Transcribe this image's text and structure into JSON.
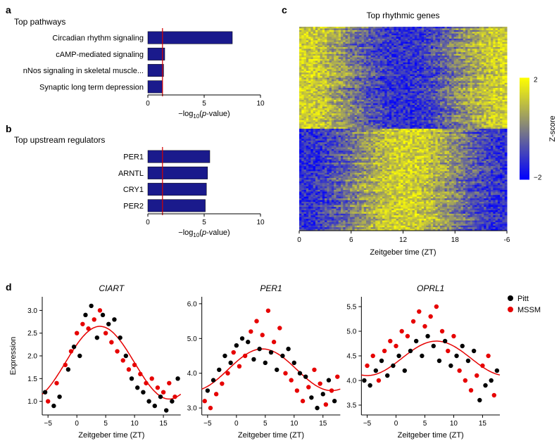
{
  "panelA": {
    "label": "a",
    "title": "Top pathways",
    "categories": [
      "Circadian rhythm signaling",
      "cAMP-mediated signaling",
      "nNos signaling in skeletal muscle...",
      "Synaptic long term depression"
    ],
    "values": [
      7.5,
      1.5,
      1.4,
      1.3
    ],
    "threshold": 1.3,
    "xlim": [
      0,
      10
    ],
    "xticks": [
      0,
      5,
      10
    ],
    "xlabel": "−log₁₀(p-value)",
    "bar_color": "#1a1a8c",
    "threshold_color": "#d40000",
    "cat_fontsize": 11,
    "tick_fontsize": 10,
    "label_fontsize": 11
  },
  "panelB": {
    "label": "b",
    "title": "Top upstream regulators",
    "categories": [
      "PER1",
      "ARNTL",
      "CRY1",
      "PER2"
    ],
    "values": [
      5.5,
      5.3,
      5.2,
      5.1
    ],
    "threshold": 1.3,
    "xlim": [
      0,
      10
    ],
    "xticks": [
      0,
      5,
      10
    ],
    "xlabel": "−log₁₀(p-value)",
    "bar_color": "#1a1a8c",
    "threshold_color": "#d40000",
    "cat_fontsize": 11,
    "tick_fontsize": 10,
    "label_fontsize": 11
  },
  "panelC": {
    "label": "c",
    "title": "Top rhythmic genes",
    "xlabel": "Zeitgeber time (ZT)",
    "xticks": [
      0,
      6,
      12,
      18,
      -6
    ],
    "colorbar_label": "Z-score",
    "colorbar_ticks": [
      -2,
      2
    ],
    "cmap_low": "#0000ff",
    "cmap_high": "#ffff00",
    "background": "#ffffff",
    "title_fontsize": 12,
    "label_fontsize": 11,
    "tick_fontsize": 10,
    "heatmap_rows": 120,
    "heatmap_cols": 90
  },
  "panelD": {
    "label": "d",
    "xlabel": "Zeitgeber time (ZT)",
    "ylabel": "Expression",
    "xlim": [
      -6,
      18
    ],
    "xticks": [
      -5,
      0,
      5,
      10,
      15
    ],
    "legend": [
      {
        "label": "Pitt",
        "color": "#000000"
      },
      {
        "label": "MSSM",
        "color": "#e60000"
      }
    ],
    "point_radius": 3.2,
    "line_color": "#e60000",
    "line_width": 1.5,
    "label_fontsize": 11,
    "tick_fontsize": 10,
    "title_fontsize": 12,
    "genes": [
      {
        "name": "CIART",
        "ylim": [
          0.7,
          3.3
        ],
        "yticks": [
          1.0,
          1.5,
          2.0,
          2.5,
          3.0
        ],
        "fit": {
          "mesor": 1.85,
          "amp": 0.8,
          "phase": 4.0
        },
        "points": [
          {
            "x": -5.5,
            "y": 1.2,
            "g": 0
          },
          {
            "x": -5.0,
            "y": 1.0,
            "g": 1
          },
          {
            "x": -4.0,
            "y": 0.9,
            "g": 0
          },
          {
            "x": -3.5,
            "y": 1.4,
            "g": 1
          },
          {
            "x": -3.0,
            "y": 1.1,
            "g": 0
          },
          {
            "x": -2.0,
            "y": 1.8,
            "g": 1
          },
          {
            "x": -1.5,
            "y": 1.7,
            "g": 0
          },
          {
            "x": -1.0,
            "y": 2.1,
            "g": 1
          },
          {
            "x": -0.5,
            "y": 2.2,
            "g": 0
          },
          {
            "x": 0.0,
            "y": 2.5,
            "g": 1
          },
          {
            "x": 0.5,
            "y": 2.0,
            "g": 0
          },
          {
            "x": 1.0,
            "y": 2.7,
            "g": 1
          },
          {
            "x": 1.5,
            "y": 2.9,
            "g": 0
          },
          {
            "x": 2.0,
            "y": 2.6,
            "g": 1
          },
          {
            "x": 2.5,
            "y": 3.1,
            "g": 0
          },
          {
            "x": 3.0,
            "y": 2.8,
            "g": 1
          },
          {
            "x": 3.5,
            "y": 2.4,
            "g": 0
          },
          {
            "x": 4.0,
            "y": 3.0,
            "g": 1
          },
          {
            "x": 4.5,
            "y": 2.9,
            "g": 0
          },
          {
            "x": 5.0,
            "y": 2.5,
            "g": 1
          },
          {
            "x": 5.5,
            "y": 2.7,
            "g": 0
          },
          {
            "x": 6.0,
            "y": 2.3,
            "g": 1
          },
          {
            "x": 6.5,
            "y": 2.8,
            "g": 0
          },
          {
            "x": 7.0,
            "y": 2.1,
            "g": 1
          },
          {
            "x": 7.5,
            "y": 2.4,
            "g": 0
          },
          {
            "x": 8.0,
            "y": 1.9,
            "g": 1
          },
          {
            "x": 8.5,
            "y": 2.0,
            "g": 0
          },
          {
            "x": 9.0,
            "y": 1.7,
            "g": 1
          },
          {
            "x": 9.5,
            "y": 1.5,
            "g": 0
          },
          {
            "x": 10.0,
            "y": 1.8,
            "g": 1
          },
          {
            "x": 10.5,
            "y": 1.3,
            "g": 0
          },
          {
            "x": 11.0,
            "y": 1.6,
            "g": 1
          },
          {
            "x": 11.5,
            "y": 1.2,
            "g": 0
          },
          {
            "x": 12.0,
            "y": 1.4,
            "g": 1
          },
          {
            "x": 12.5,
            "y": 1.0,
            "g": 0
          },
          {
            "x": 13.0,
            "y": 1.5,
            "g": 1
          },
          {
            "x": 13.5,
            "y": 0.9,
            "g": 0
          },
          {
            "x": 14.0,
            "y": 1.3,
            "g": 1
          },
          {
            "x": 14.5,
            "y": 1.1,
            "g": 0
          },
          {
            "x": 15.0,
            "y": 1.2,
            "g": 1
          },
          {
            "x": 15.5,
            "y": 0.8,
            "g": 0
          },
          {
            "x": 16.0,
            "y": 1.4,
            "g": 1
          },
          {
            "x": 16.5,
            "y": 1.0,
            "g": 0
          },
          {
            "x": 17.0,
            "y": 1.1,
            "g": 1
          },
          {
            "x": 17.5,
            "y": 1.5,
            "g": 0
          }
        ]
      },
      {
        "name": "PER1",
        "ylim": [
          2.8,
          6.2
        ],
        "yticks": [
          3.0,
          4.0,
          5.0,
          6.0
        ],
        "fit": {
          "mesor": 4.1,
          "amp": 0.6,
          "phase": 4.5
        },
        "points": [
          {
            "x": -5.5,
            "y": 3.2,
            "g": 1
          },
          {
            "x": -5.0,
            "y": 3.5,
            "g": 0
          },
          {
            "x": -4.5,
            "y": 3.0,
            "g": 1
          },
          {
            "x": -4.0,
            "y": 3.8,
            "g": 0
          },
          {
            "x": -3.5,
            "y": 3.4,
            "g": 1
          },
          {
            "x": -3.0,
            "y": 4.1,
            "g": 0
          },
          {
            "x": -2.5,
            "y": 3.7,
            "g": 1
          },
          {
            "x": -2.0,
            "y": 4.5,
            "g": 0
          },
          {
            "x": -1.5,
            "y": 4.0,
            "g": 1
          },
          {
            "x": -1.0,
            "y": 4.3,
            "g": 0
          },
          {
            "x": -0.5,
            "y": 4.6,
            "g": 1
          },
          {
            "x": 0.0,
            "y": 4.8,
            "g": 0
          },
          {
            "x": 0.5,
            "y": 4.2,
            "g": 1
          },
          {
            "x": 1.0,
            "y": 5.0,
            "g": 0
          },
          {
            "x": 1.5,
            "y": 4.5,
            "g": 1
          },
          {
            "x": 2.0,
            "y": 4.9,
            "g": 0
          },
          {
            "x": 2.5,
            "y": 5.2,
            "g": 1
          },
          {
            "x": 3.0,
            "y": 4.4,
            "g": 0
          },
          {
            "x": 3.5,
            "y": 5.5,
            "g": 1
          },
          {
            "x": 4.0,
            "y": 4.7,
            "g": 0
          },
          {
            "x": 4.5,
            "y": 5.1,
            "g": 1
          },
          {
            "x": 5.0,
            "y": 4.3,
            "g": 0
          },
          {
            "x": 5.5,
            "y": 5.8,
            "g": 1
          },
          {
            "x": 6.0,
            "y": 4.6,
            "g": 0
          },
          {
            "x": 6.5,
            "y": 4.9,
            "g": 1
          },
          {
            "x": 7.0,
            "y": 4.1,
            "g": 0
          },
          {
            "x": 7.5,
            "y": 5.3,
            "g": 1
          },
          {
            "x": 8.0,
            "y": 4.5,
            "g": 0
          },
          {
            "x": 8.5,
            "y": 4.0,
            "g": 1
          },
          {
            "x": 9.0,
            "y": 4.7,
            "g": 0
          },
          {
            "x": 9.5,
            "y": 3.8,
            "g": 1
          },
          {
            "x": 10.0,
            "y": 4.3,
            "g": 0
          },
          {
            "x": 10.5,
            "y": 3.5,
            "g": 1
          },
          {
            "x": 11.0,
            "y": 4.0,
            "g": 0
          },
          {
            "x": 11.5,
            "y": 3.2,
            "g": 1
          },
          {
            "x": 12.0,
            "y": 3.9,
            "g": 0
          },
          {
            "x": 12.5,
            "y": 3.6,
            "g": 1
          },
          {
            "x": 13.0,
            "y": 3.3,
            "g": 0
          },
          {
            "x": 13.5,
            "y": 4.1,
            "g": 1
          },
          {
            "x": 14.0,
            "y": 3.0,
            "g": 0
          },
          {
            "x": 14.5,
            "y": 3.7,
            "g": 1
          },
          {
            "x": 15.0,
            "y": 3.4,
            "g": 0
          },
          {
            "x": 15.5,
            "y": 3.1,
            "g": 1
          },
          {
            "x": 16.0,
            "y": 3.8,
            "g": 0
          },
          {
            "x": 16.5,
            "y": 3.5,
            "g": 1
          },
          {
            "x": 17.0,
            "y": 3.2,
            "g": 0
          },
          {
            "x": 17.5,
            "y": 3.9,
            "g": 1
          }
        ]
      },
      {
        "name": "OPRL1",
        "ylim": [
          3.3,
          5.7
        ],
        "yticks": [
          3.5,
          4.0,
          4.5,
          5.0,
          5.5
        ],
        "fit": {
          "mesor": 4.45,
          "amp": 0.35,
          "phase": 7.0
        },
        "points": [
          {
            "x": -5.5,
            "y": 4.0,
            "g": 0
          },
          {
            "x": -5.0,
            "y": 4.3,
            "g": 1
          },
          {
            "x": -4.5,
            "y": 3.9,
            "g": 0
          },
          {
            "x": -4.0,
            "y": 4.5,
            "g": 1
          },
          {
            "x": -3.5,
            "y": 4.2,
            "g": 0
          },
          {
            "x": -3.0,
            "y": 4.0,
            "g": 1
          },
          {
            "x": -2.5,
            "y": 4.4,
            "g": 0
          },
          {
            "x": -2.0,
            "y": 4.6,
            "g": 1
          },
          {
            "x": -1.5,
            "y": 4.1,
            "g": 0
          },
          {
            "x": -1.0,
            "y": 4.8,
            "g": 1
          },
          {
            "x": -0.5,
            "y": 4.3,
            "g": 0
          },
          {
            "x": 0.0,
            "y": 4.7,
            "g": 1
          },
          {
            "x": 0.5,
            "y": 4.5,
            "g": 0
          },
          {
            "x": 1.0,
            "y": 5.0,
            "g": 1
          },
          {
            "x": 1.5,
            "y": 4.2,
            "g": 0
          },
          {
            "x": 2.0,
            "y": 4.9,
            "g": 1
          },
          {
            "x": 2.5,
            "y": 4.6,
            "g": 0
          },
          {
            "x": 3.0,
            "y": 5.2,
            "g": 1
          },
          {
            "x": 3.5,
            "y": 4.8,
            "g": 0
          },
          {
            "x": 4.0,
            "y": 5.4,
            "g": 1
          },
          {
            "x": 4.5,
            "y": 4.5,
            "g": 0
          },
          {
            "x": 5.0,
            "y": 5.1,
            "g": 1
          },
          {
            "x": 5.5,
            "y": 4.9,
            "g": 0
          },
          {
            "x": 6.0,
            "y": 5.3,
            "g": 1
          },
          {
            "x": 6.5,
            "y": 4.7,
            "g": 0
          },
          {
            "x": 7.0,
            "y": 5.5,
            "g": 1
          },
          {
            "x": 7.5,
            "y": 4.4,
            "g": 0
          },
          {
            "x": 8.0,
            "y": 5.0,
            "g": 1
          },
          {
            "x": 8.5,
            "y": 4.8,
            "g": 0
          },
          {
            "x": 9.0,
            "y": 4.6,
            "g": 1
          },
          {
            "x": 9.5,
            "y": 4.3,
            "g": 0
          },
          {
            "x": 10.0,
            "y": 4.9,
            "g": 1
          },
          {
            "x": 10.5,
            "y": 4.5,
            "g": 0
          },
          {
            "x": 11.0,
            "y": 4.2,
            "g": 1
          },
          {
            "x": 11.5,
            "y": 4.7,
            "g": 0
          },
          {
            "x": 12.0,
            "y": 4.0,
            "g": 1
          },
          {
            "x": 12.5,
            "y": 4.4,
            "g": 0
          },
          {
            "x": 13.0,
            "y": 3.8,
            "g": 1
          },
          {
            "x": 13.5,
            "y": 4.6,
            "g": 0
          },
          {
            "x": 14.0,
            "y": 4.1,
            "g": 1
          },
          {
            "x": 14.5,
            "y": 3.6,
            "g": 0
          },
          {
            "x": 15.0,
            "y": 4.3,
            "g": 1
          },
          {
            "x": 15.5,
            "y": 3.9,
            "g": 0
          },
          {
            "x": 16.0,
            "y": 4.5,
            "g": 1
          },
          {
            "x": 16.5,
            "y": 4.0,
            "g": 0
          },
          {
            "x": 17.0,
            "y": 3.7,
            "g": 1
          },
          {
            "x": 17.5,
            "y": 4.2,
            "g": 0
          }
        ]
      }
    ]
  }
}
